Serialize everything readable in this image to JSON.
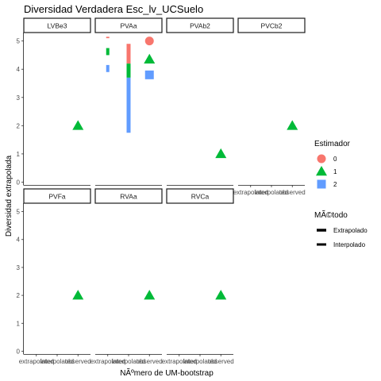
{
  "chart_data": {
    "type": "scatter",
    "title": "Diversidad Verdadera Esc_lv_UCSuelo",
    "xlabel": "NÃºmero de UM-bootstrap",
    "ylabel": "Diversidad extrapolada",
    "x_categories": [
      "extrapolated",
      "interpolated",
      "observed"
    ],
    "x_tick_labels": [
      "extrapolated",
      "interpolated",
      "observed"
    ],
    "y_ticks": [
      "0",
      "1",
      "2",
      "3",
      "4",
      "5"
    ],
    "ylim": [
      -0.1,
      5.3
    ],
    "legend": {
      "shape_title": "Estimador",
      "shape_labels": [
        "0",
        "1",
        "2"
      ],
      "line_title": "MÃ©todo",
      "line_labels": [
        "Extrapolado",
        "Interpolado"
      ]
    },
    "colors": {
      "0": "#F8766D",
      "1": "#00BA38",
      "2": "#619CFF"
    },
    "panels": [
      {
        "name": "LVBe3",
        "show_x_ticks": false,
        "points": [
          {
            "x": "observed",
            "estimator": "1",
            "y": 2.0
          }
        ],
        "segments": []
      },
      {
        "name": "PVAa",
        "show_x_ticks": false,
        "points": [
          {
            "x": "observed",
            "estimator": "0",
            "y": 5.0
          },
          {
            "x": "observed",
            "estimator": "1",
            "y": 4.35
          },
          {
            "x": "observed",
            "estimator": "2",
            "y": 3.8
          }
        ],
        "segments": [
          {
            "x": "extrapolated",
            "estimator": "0",
            "y0": 5.1,
            "y1": 5.15,
            "method": "Extrapolado"
          },
          {
            "x": "extrapolated",
            "estimator": "1",
            "y0": 4.5,
            "y1": 4.75,
            "method": "Extrapolado"
          },
          {
            "x": "extrapolated",
            "estimator": "2",
            "y0": 3.9,
            "y1": 4.15,
            "method": "Extrapolado"
          },
          {
            "x": "interpolated",
            "estimator": "0",
            "y0": 4.2,
            "y1": 4.9,
            "method": "Interpolado"
          },
          {
            "x": "interpolated",
            "estimator": "1",
            "y0": 3.7,
            "y1": 4.2,
            "method": "Interpolado"
          },
          {
            "x": "interpolated",
            "estimator": "2",
            "y0": 1.75,
            "y1": 3.7,
            "method": "Interpolado"
          }
        ]
      },
      {
        "name": "PVAb2",
        "show_x_ticks": false,
        "points": [
          {
            "x": "observed",
            "estimator": "1",
            "y": 1.0
          }
        ],
        "segments": []
      },
      {
        "name": "PVCb2",
        "show_x_ticks": true,
        "points": [
          {
            "x": "observed",
            "estimator": "1",
            "y": 2.0
          }
        ],
        "segments": []
      },
      {
        "name": "PVFa",
        "show_x_ticks": true,
        "points": [
          {
            "x": "observed",
            "estimator": "1",
            "y": 2.0
          }
        ],
        "segments": []
      },
      {
        "name": "RVAa",
        "show_x_ticks": true,
        "points": [
          {
            "x": "observed",
            "estimator": "1",
            "y": 2.0
          }
        ],
        "segments": []
      },
      {
        "name": "RVCa",
        "show_x_ticks": true,
        "points": [
          {
            "x": "observed",
            "estimator": "1",
            "y": 2.0
          }
        ],
        "segments": []
      }
    ]
  }
}
